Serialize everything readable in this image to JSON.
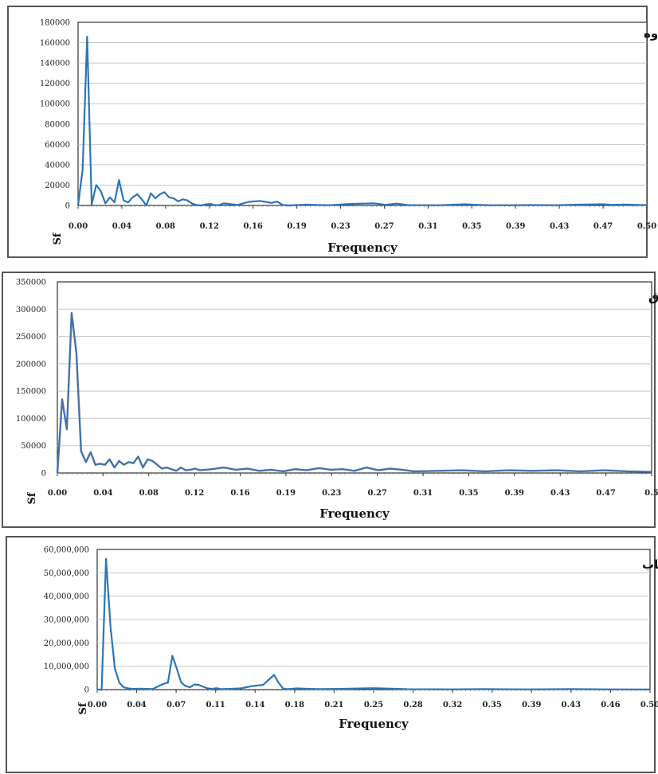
{
  "chart_data": [
    {
      "type": "line",
      "title": "ورده ناوه",
      "xlabel": "Frequency",
      "ylabel": "Sf",
      "color": "#2e75b6",
      "x_ticks": [
        "0.00",
        "0.04",
        "0.08",
        "0.12",
        "0.16",
        "0.19",
        "0.23",
        "0.27",
        "0.31",
        "0.35",
        "0.39",
        "0.43",
        "0.47",
        "0.50"
      ],
      "y_ticks": [
        "180000",
        "160000",
        "140000",
        "120000",
        "100000",
        "80000",
        "60000",
        "40000",
        "20000",
        "0"
      ],
      "ylim": [
        0,
        180000
      ],
      "xlim": [
        0,
        0.5
      ],
      "grid": true,
      "series": [
        {
          "x": [
            0,
            0.004,
            0.008,
            0.012,
            0.016,
            0.02,
            0.024,
            0.028,
            0.032,
            0.036,
            0.04,
            0.044,
            0.048,
            0.052,
            0.056,
            0.06,
            0.064,
            0.068,
            0.072,
            0.076,
            0.08,
            0.084,
            0.088,
            0.092,
            0.096,
            0.1,
            0.104,
            0.108,
            0.112,
            0.116,
            0.12,
            0.124,
            0.128,
            0.14,
            0.15,
            0.16,
            0.17,
            0.175,
            0.18,
            0.185,
            0.19,
            0.2,
            0.22,
            0.24,
            0.26,
            0.27,
            0.28,
            0.29,
            0.3,
            0.32,
            0.34,
            0.35,
            0.36,
            0.38,
            0.4,
            0.42,
            0.44,
            0.46,
            0.47,
            0.48,
            0.5
          ],
          "y": [
            0,
            35000,
            166000,
            1000,
            20000,
            14000,
            2000,
            8000,
            3000,
            25000,
            5000,
            3000,
            8000,
            11000,
            6000,
            0,
            12000,
            7000,
            11000,
            13000,
            8000,
            7000,
            4000,
            6000,
            5000,
            2000,
            500,
            0,
            1000,
            1500,
            500,
            300,
            2000,
            500,
            3500,
            4500,
            2500,
            3800,
            500,
            0,
            300,
            800,
            200,
            1500,
            2000,
            600,
            1800,
            400,
            200,
            300,
            1200,
            600,
            300,
            200,
            400,
            200,
            800,
            1200,
            600,
            900,
            300
          ]
        }
      ]
    },
    {
      "type": "line",
      "title": "سید صادق",
      "xlabel": "Frequency",
      "ylabel": "Sf",
      "color": "#4472a8",
      "x_ticks": [
        "0.00",
        "0.04",
        "0.08",
        "0.12",
        "0.16",
        "0.19",
        "0.23",
        "0.27",
        "0.31",
        "0.35",
        "0.39",
        "0.43",
        "0.47",
        "0.5"
      ],
      "y_ticks": [
        "350000",
        "300000",
        "250000",
        "200000",
        "150000",
        "100000",
        "50000",
        "0"
      ],
      "ylim": [
        0,
        350000
      ],
      "xlim": [
        0,
        0.5
      ],
      "grid": true,
      "series": [
        {
          "x": [
            0,
            0.004,
            0.008,
            0.012,
            0.016,
            0.02,
            0.024,
            0.028,
            0.032,
            0.036,
            0.04,
            0.044,
            0.048,
            0.052,
            0.056,
            0.06,
            0.064,
            0.068,
            0.072,
            0.076,
            0.08,
            0.084,
            0.088,
            0.092,
            0.096,
            0.1,
            0.104,
            0.108,
            0.112,
            0.116,
            0.12,
            0.13,
            0.14,
            0.15,
            0.16,
            0.17,
            0.18,
            0.19,
            0.2,
            0.21,
            0.22,
            0.23,
            0.24,
            0.25,
            0.26,
            0.27,
            0.28,
            0.29,
            0.3,
            0.32,
            0.34,
            0.36,
            0.38,
            0.4,
            0.42,
            0.44,
            0.46,
            0.48,
            0.5
          ],
          "y": [
            0,
            135000,
            80000,
            293000,
            220000,
            40000,
            20000,
            38000,
            15000,
            17000,
            15000,
            25000,
            10000,
            22000,
            15000,
            20000,
            18000,
            30000,
            10000,
            25000,
            22000,
            15000,
            8000,
            10000,
            7000,
            4000,
            10000,
            5000,
            6000,
            8000,
            5000,
            7000,
            10000,
            6000,
            8000,
            4000,
            6000,
            3000,
            7000,
            5000,
            9000,
            6000,
            7000,
            4000,
            10000,
            5000,
            8000,
            6000,
            3000,
            4000,
            5000,
            3000,
            5000,
            4000,
            5000,
            3000,
            5000,
            3000,
            2000
          ]
        }
      ]
    },
    {
      "type": "line",
      "title": "ریجاب",
      "xlabel": "Frequency",
      "ylabel": "Sf",
      "color": "#2e75b6",
      "x_ticks": [
        "0.00",
        "0.04",
        "0.07",
        "0.11",
        "0.14",
        "0.18",
        "0.21",
        "0.25",
        "0.28",
        "0.32",
        "0.35",
        "0.39",
        "0.43",
        "0.46",
        "0.50"
      ],
      "y_ticks": [
        "60,000,000",
        "50,000,000",
        "40,000,000",
        "30,000,000",
        "20,000,000",
        "10,000,000",
        "0"
      ],
      "ylim": [
        0,
        60000000
      ],
      "xlim": [
        0,
        0.5
      ],
      "grid": true,
      "series": [
        {
          "x": [
            0,
            0.004,
            0.008,
            0.012,
            0.016,
            0.02,
            0.024,
            0.028,
            0.032,
            0.04,
            0.05,
            0.06,
            0.064,
            0.068,
            0.072,
            0.076,
            0.08,
            0.084,
            0.088,
            0.092,
            0.096,
            0.1,
            0.104,
            0.108,
            0.112,
            0.12,
            0.13,
            0.14,
            0.15,
            0.16,
            0.164,
            0.168,
            0.172,
            0.176,
            0.18,
            0.2,
            0.22,
            0.25,
            0.28,
            0.32,
            0.35,
            0.39,
            0.43,
            0.46,
            0.5
          ],
          "y": [
            0,
            0,
            56000000,
            27000000,
            9000000,
            3000000,
            1000000,
            500000,
            300000,
            400000,
            200000,
            2500000,
            3000000,
            14500000,
            9000000,
            3000000,
            1500000,
            1000000,
            2200000,
            2000000,
            1200000,
            500000,
            300000,
            600000,
            200000,
            300000,
            500000,
            1500000,
            2000000,
            6300000,
            3000000,
            500000,
            200000,
            300000,
            500000,
            200000,
            300000,
            600000,
            200000,
            100000,
            200000,
            100000,
            200000,
            100000,
            50000
          ]
        }
      ]
    }
  ]
}
